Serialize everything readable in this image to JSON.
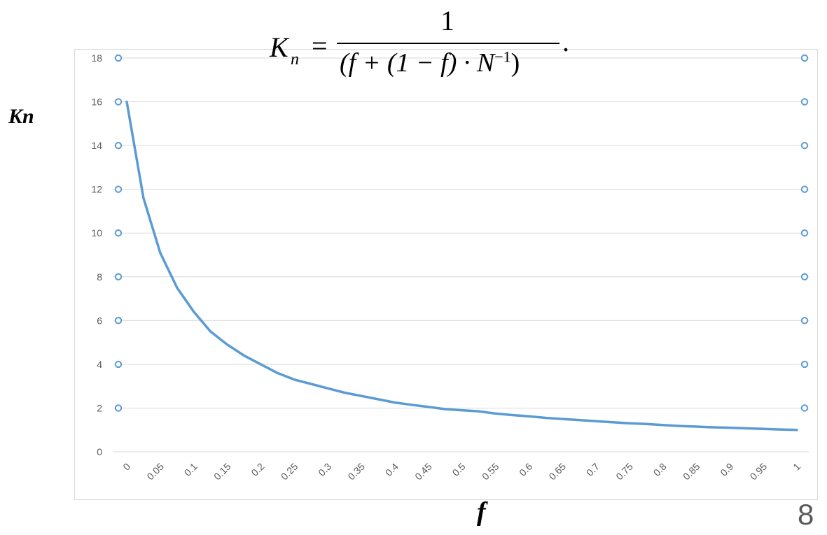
{
  "formula": {
    "lhs": "K",
    "lhs_sub": "n",
    "equals": "=",
    "numerator": "1",
    "den_a": "(f + (1 − f) · N",
    "den_exp": "−1",
    "den_b": ")",
    "period": "."
  },
  "axis_labels": {
    "x": "f",
    "y": "Kn"
  },
  "slide_number": "8",
  "colors": {
    "series": "#5B9BD5",
    "grid": "#d9d9d9",
    "tick_text": "#595959"
  },
  "chart_data": {
    "type": "line",
    "xlabel": "f",
    "ylabel": "Kn",
    "title": "",
    "ylim": [
      0,
      18
    ],
    "yticks": [
      "0",
      "2",
      "4",
      "6",
      "8",
      "10",
      "12",
      "14",
      "16",
      "18"
    ],
    "x_tick_labels": [
      "0",
      "0.05",
      "0.1",
      "0.15",
      "0.2",
      "0.25",
      "0.3",
      "0.35",
      "0.4",
      "0.45",
      "0.5",
      "0.55",
      "0.6",
      "0.65",
      "0.7",
      "0.75",
      "0.8",
      "0.85",
      "0.9",
      "0.95",
      "1"
    ],
    "x": [
      0,
      0.025,
      0.05,
      0.075,
      0.1,
      0.125,
      0.15,
      0.175,
      0.2,
      0.225,
      0.25,
      0.275,
      0.3,
      0.325,
      0.35,
      0.375,
      0.4,
      0.425,
      0.45,
      0.475,
      0.5,
      0.525,
      0.55,
      0.575,
      0.6,
      0.625,
      0.65,
      0.675,
      0.7,
      0.725,
      0.75,
      0.775,
      0.8,
      0.825,
      0.85,
      0.875,
      0.9,
      0.925,
      0.95,
      0.975,
      1
    ],
    "y": [
      16,
      11.6,
      9.1,
      7.5,
      6.4,
      5.5,
      4.9,
      4.4,
      4.0,
      3.6,
      3.3,
      3.1,
      2.9,
      2.7,
      2.55,
      2.4,
      2.25,
      2.15,
      2.05,
      1.95,
      1.9,
      1.85,
      1.75,
      1.68,
      1.62,
      1.55,
      1.5,
      1.45,
      1.4,
      1.35,
      1.3,
      1.27,
      1.22,
      1.18,
      1.15,
      1.12,
      1.1,
      1.07,
      1.05,
      1.02,
      1.0
    ],
    "grid": true,
    "legend": "none",
    "side_marker_y": [
      2,
      4,
      6,
      8,
      10,
      12,
      14,
      16,
      18
    ]
  }
}
